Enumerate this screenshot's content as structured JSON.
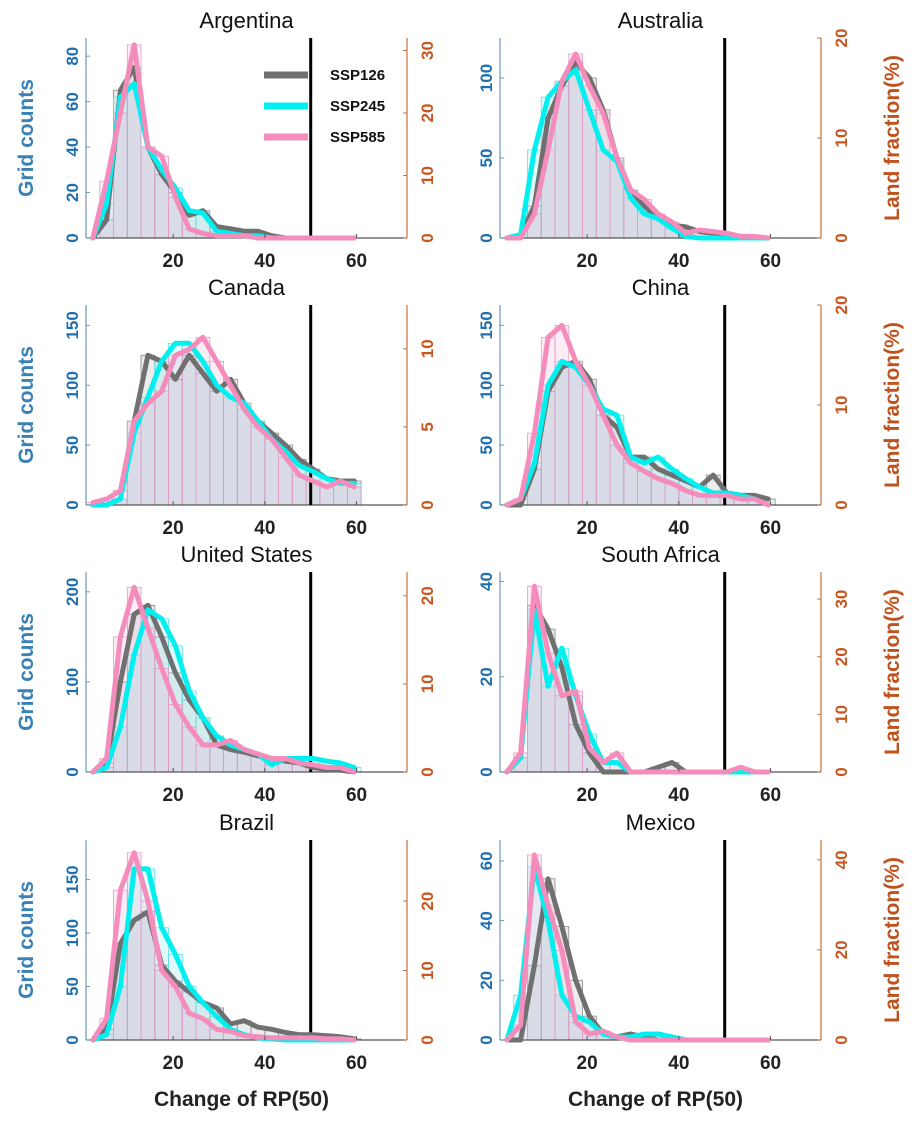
{
  "chart_data": {
    "type": "histogram-with-lines",
    "bin_centers": [
      2.5,
      5.5,
      8.5,
      11.5,
      14.5,
      17.5,
      20.5,
      23.5,
      26.5,
      29.5,
      32.5,
      35.5,
      38.5,
      41.5,
      44.5,
      47.5,
      50.5,
      53.5,
      56.5,
      59.5
    ],
    "xlim": [
      1,
      71
    ],
    "xticks": [
      20,
      40,
      60
    ],
    "xlabel": "Change of RP(50)",
    "ylabel": "Grid counts",
    "y2label": "Land fraction(%)",
    "reference_line_x": 50,
    "legend": {
      "placement": "top-right of first panel",
      "entries": [
        "SSP126",
        "SSP245",
        "SSP585"
      ]
    },
    "series_colors": {
      "SSP126": "#707070",
      "SSP245": "#00f0f0",
      "SSP585": "#f48cbc"
    },
    "panels": [
      {
        "title": "Argentina",
        "ylim": [
          0,
          88
        ],
        "yticks": [
          0,
          20,
          40,
          60,
          80
        ],
        "y2lim": [
          0,
          32
        ],
        "y2ticks": [
          0,
          10,
          20,
          30
        ],
        "series": [
          {
            "name": "SSP126",
            "values": [
              0,
              8,
              65,
              75,
              40,
              28,
              20,
              10,
              12,
              5,
              4,
              3,
              3,
              1,
              0,
              0,
              0,
              0,
              0,
              0
            ]
          },
          {
            "name": "SSP245",
            "values": [
              0,
              15,
              62,
              68,
              40,
              30,
              22,
              12,
              11,
              3,
              2,
              1,
              1,
              0,
              0,
              0,
              0,
              0,
              0,
              0
            ]
          },
          {
            "name": "SSP585",
            "values": [
              0,
              25,
              55,
              85,
              40,
              36,
              18,
              4,
              2,
              1,
              1,
              1,
              0,
              0,
              0,
              0,
              0,
              0,
              0,
              0
            ]
          }
        ]
      },
      {
        "title": "Australia",
        "ylim": [
          0,
          125
        ],
        "yticks": [
          0,
          50,
          100
        ],
        "y2lim": [
          0,
          20
        ],
        "y2ticks": [
          0,
          10,
          20
        ],
        "series": [
          {
            "name": "SSP126",
            "values": [
              0,
              2,
              20,
              75,
              95,
              110,
              100,
              80,
              50,
              30,
              20,
              12,
              8,
              7,
              4,
              3,
              1,
              1,
              0,
              0
            ]
          },
          {
            "name": "SSP245",
            "values": [
              0,
              2,
              55,
              88,
              98,
              105,
              80,
              55,
              48,
              25,
              15,
              12,
              6,
              1,
              0,
              0,
              0,
              0,
              0,
              0
            ]
          },
          {
            "name": "SSP585",
            "values": [
              0,
              0,
              15,
              55,
              98,
              115,
              95,
              78,
              50,
              30,
              24,
              15,
              10,
              3,
              5,
              4,
              3,
              1,
              1,
              0
            ]
          }
        ]
      },
      {
        "title": "Canada",
        "ylim": [
          0,
          167
        ],
        "yticks": [
          0,
          50,
          100,
          150
        ],
        "y2lim": [
          0,
          12.8
        ],
        "y2ticks": [
          0,
          5,
          10
        ],
        "series": [
          {
            "name": "SSP126",
            "values": [
              0,
              0,
              5,
              70,
              125,
              120,
              105,
              125,
              110,
              95,
              105,
              85,
              70,
              60,
              50,
              38,
              30,
              22,
              20,
              20
            ]
          },
          {
            "name": "SSP245",
            "values": [
              0,
              0,
              5,
              60,
              90,
              120,
              135,
              135,
              120,
              100,
              90,
              85,
              70,
              55,
              45,
              33,
              28,
              22,
              18,
              18
            ]
          },
          {
            "name": "SSP585",
            "values": [
              2,
              5,
              12,
              70,
              85,
              95,
              125,
              130,
              140,
              120,
              100,
              80,
              65,
              55,
              40,
              25,
              20,
              15,
              20,
              15
            ]
          }
        ]
      },
      {
        "title": "China",
        "ylim": [
          0,
          167
        ],
        "yticks": [
          0,
          50,
          100,
          150
        ],
        "y2lim": [
          0,
          20
        ],
        "y2ticks": [
          0,
          10,
          20
        ],
        "series": [
          {
            "name": "SSP126",
            "values": [
              0,
              0,
              30,
              95,
              115,
              120,
              105,
              75,
              65,
              40,
              40,
              30,
              25,
              20,
              15,
              25,
              10,
              8,
              8,
              5
            ]
          },
          {
            "name": "SSP245",
            "values": [
              0,
              5,
              35,
              100,
              120,
              115,
              100,
              80,
              75,
              40,
              35,
              40,
              30,
              22,
              15,
              10,
              10,
              8,
              5,
              0
            ]
          },
          {
            "name": "SSP585",
            "values": [
              0,
              5,
              60,
              140,
              150,
              120,
              100,
              75,
              50,
              35,
              28,
              22,
              18,
              12,
              8,
              8,
              8,
              5,
              5,
              0
            ]
          }
        ]
      },
      {
        "title": "United States",
        "ylim": [
          0,
          222
        ],
        "yticks": [
          0,
          100,
          200
        ],
        "y2lim": [
          0,
          22.7
        ],
        "y2ticks": [
          0,
          10,
          20
        ],
        "series": [
          {
            "name": "SSP126",
            "values": [
              0,
              10,
              100,
              175,
              185,
              150,
              110,
              80,
              60,
              30,
              25,
              22,
              18,
              15,
              12,
              10,
              5,
              3,
              2,
              0
            ]
          },
          {
            "name": "SSP245",
            "values": [
              0,
              5,
              50,
              130,
              180,
              170,
              140,
              90,
              60,
              40,
              30,
              25,
              20,
              8,
              15,
              15,
              15,
              12,
              10,
              5
            ]
          },
          {
            "name": "SSP585",
            "values": [
              0,
              15,
              150,
              205,
              160,
              115,
              75,
              50,
              30,
              30,
              35,
              25,
              20,
              15,
              15,
              10,
              8,
              5,
              5,
              0
            ]
          }
        ]
      },
      {
        "title": "South Africa",
        "ylim": [
          0,
          42
        ],
        "yticks": [
          0,
          20,
          40
        ],
        "y2lim": [
          0,
          34.7
        ],
        "y2ticks": [
          0,
          10,
          20,
          30
        ],
        "series": [
          {
            "name": "SSP126",
            "values": [
              0,
              3,
              35,
              30,
              22,
              10,
              4,
              0,
              0,
              0,
              0,
              1,
              2,
              0,
              0,
              0,
              0,
              0,
              0,
              0
            ]
          },
          {
            "name": "SSP245",
            "values": [
              0,
              3,
              34,
              18,
              26,
              16,
              8,
              2,
              2,
              0,
              0,
              0,
              0,
              0,
              0,
              0,
              0,
              0,
              0,
              0
            ]
          },
          {
            "name": "SSP585",
            "values": [
              0,
              4,
              39,
              25,
              16,
              17,
              5,
              2,
              4,
              0,
              0,
              0,
              0,
              0,
              0,
              0,
              0,
              1,
              0,
              0
            ]
          }
        ]
      },
      {
        "title": "Brazil",
        "ylim": [
          0,
          187
        ],
        "yticks": [
          0,
          50,
          100,
          150
        ],
        "y2lim": [
          0,
          28.8
        ],
        "y2ticks": [
          0,
          10,
          20
        ],
        "series": [
          {
            "name": "SSP126",
            "values": [
              0,
              10,
              90,
              112,
              120,
              70,
              55,
              45,
              35,
              30,
              15,
              18,
              12,
              10,
              7,
              5,
              5,
              4,
              3,
              1
            ]
          },
          {
            "name": "SSP245",
            "values": [
              0,
              5,
              50,
              160,
              160,
              105,
              80,
              50,
              35,
              22,
              10,
              5,
              2,
              1,
              0,
              0,
              0,
              0,
              0,
              0
            ]
          },
          {
            "name": "SSP585",
            "values": [
              0,
              20,
              140,
              175,
              130,
              65,
              50,
              25,
              20,
              10,
              8,
              4,
              3,
              2,
              2,
              2,
              2,
              1,
              1,
              0
            ]
          }
        ]
      },
      {
        "title": "Mexico",
        "ylim": [
          0,
          67
        ],
        "yticks": [
          0,
          20,
          40,
          60
        ],
        "y2lim": [
          0,
          44.4
        ],
        "y2ticks": [
          0,
          20,
          40
        ],
        "series": [
          {
            "name": "SSP126",
            "values": [
              0,
              0,
              25,
              54,
              38,
              20,
              8,
              2,
              1,
              2,
              1,
              0,
              0,
              0,
              0,
              0,
              0,
              0,
              0,
              0
            ]
          },
          {
            "name": "SSP245",
            "values": [
              0,
              15,
              58,
              40,
              15,
              8,
              6,
              2,
              1,
              1,
              2,
              2,
              1,
              0,
              0,
              0,
              0,
              0,
              0,
              0
            ]
          },
          {
            "name": "SSP585",
            "values": [
              0,
              5,
              62,
              45,
              30,
              6,
              2,
              3,
              1,
              0,
              0,
              0,
              0,
              0,
              0,
              0,
              0,
              0,
              0,
              0
            ]
          }
        ]
      }
    ]
  }
}
